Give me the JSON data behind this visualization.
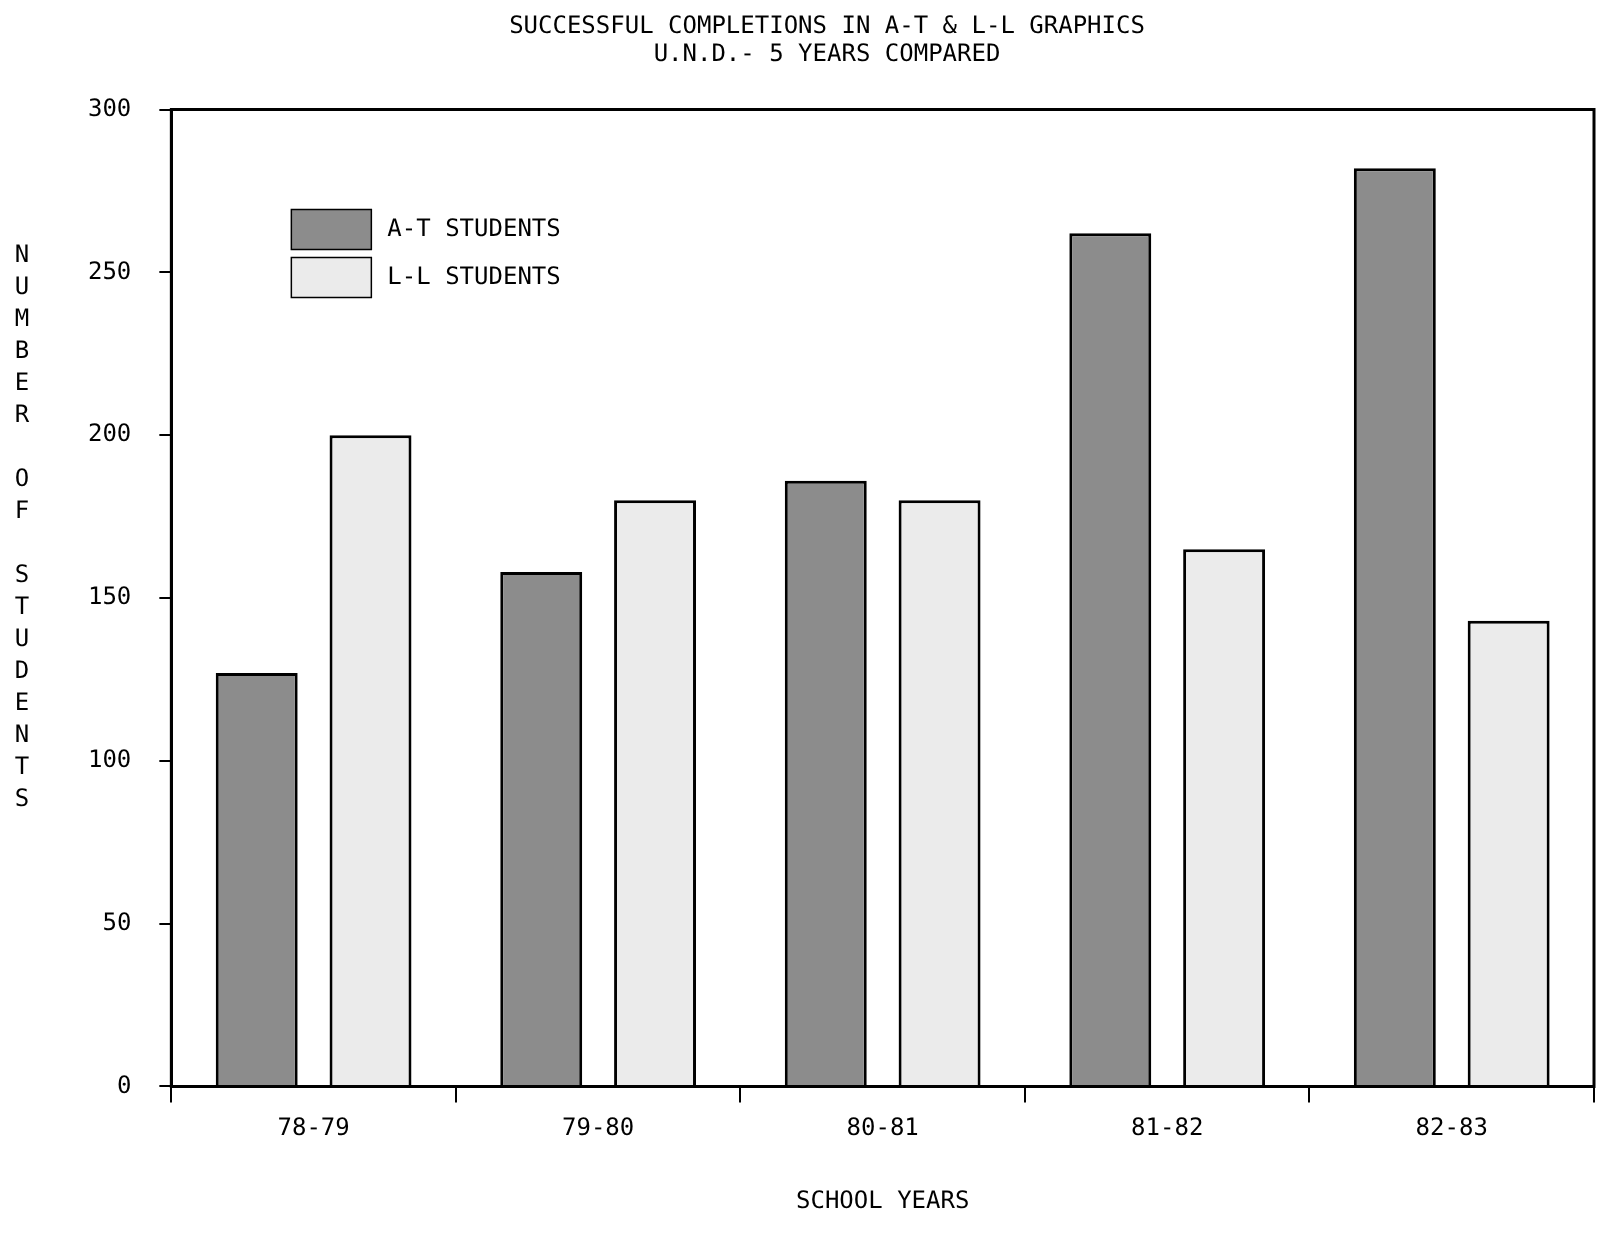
{
  "chart_data": {
    "type": "bar",
    "title": "SUCCESSFUL COMPLETIONS IN A-T & L-L GRAPHICS",
    "subtitle": "U.N.D.- 5 YEARS COMPARED",
    "xlabel": "SCHOOL YEARS",
    "ylabel": "NUMBER OF STUDENTS",
    "categories": [
      "78-79",
      "79-80",
      "80-81",
      "81-82",
      "82-83"
    ],
    "series": [
      {
        "name": "A-T STUDENTS",
        "color": "#8c8c8c",
        "values": [
          127,
          158,
          186,
          262,
          282
        ]
      },
      {
        "name": "L-L STUDENTS",
        "color": "#ebebeb",
        "values": [
          200,
          180,
          180,
          165,
          143
        ]
      }
    ],
    "ylim": [
      0,
      300
    ],
    "yticks": [
      0,
      50,
      100,
      150,
      200,
      250,
      300
    ],
    "grid": false,
    "legend": "top left"
  }
}
